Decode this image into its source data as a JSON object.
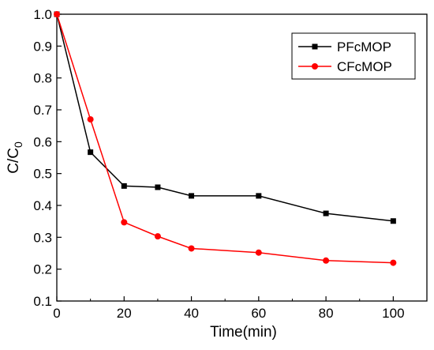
{
  "chart_data": {
    "type": "line",
    "xlabel": "Time(min)",
    "ylabel": {
      "main": "C/C",
      "sub": "0"
    },
    "xlim": [
      0,
      110
    ],
    "ylim": [
      0.1,
      1.0
    ],
    "xticks": [
      0,
      20,
      40,
      60,
      80,
      100
    ],
    "yticks": [
      0.1,
      0.2,
      0.3,
      0.4,
      0.5,
      0.6,
      0.7,
      0.8,
      0.9,
      1.0
    ],
    "xtick_labels": [
      "0",
      "20",
      "40",
      "60",
      "80",
      "100"
    ],
    "ytick_labels": [
      "0.1",
      "0.2",
      "0.3",
      "0.4",
      "0.5",
      "0.6",
      "0.7",
      "0.8",
      "0.9",
      "1.0"
    ],
    "grid": false,
    "legend_position": "top-right",
    "series": [
      {
        "name": "PFcMOP",
        "color": "#000000",
        "marker": "square",
        "x": [
          0,
          10,
          20,
          30,
          40,
          60,
          80,
          100
        ],
        "y": [
          1.0,
          0.567,
          0.461,
          0.457,
          0.43,
          0.43,
          0.375,
          0.351
        ]
      },
      {
        "name": "CFcMOP",
        "color": "#ff0000",
        "marker": "circle",
        "x": [
          0,
          10,
          20,
          30,
          40,
          60,
          80,
          100
        ],
        "y": [
          1.0,
          0.67,
          0.347,
          0.303,
          0.265,
          0.252,
          0.227,
          0.22
        ]
      }
    ]
  }
}
